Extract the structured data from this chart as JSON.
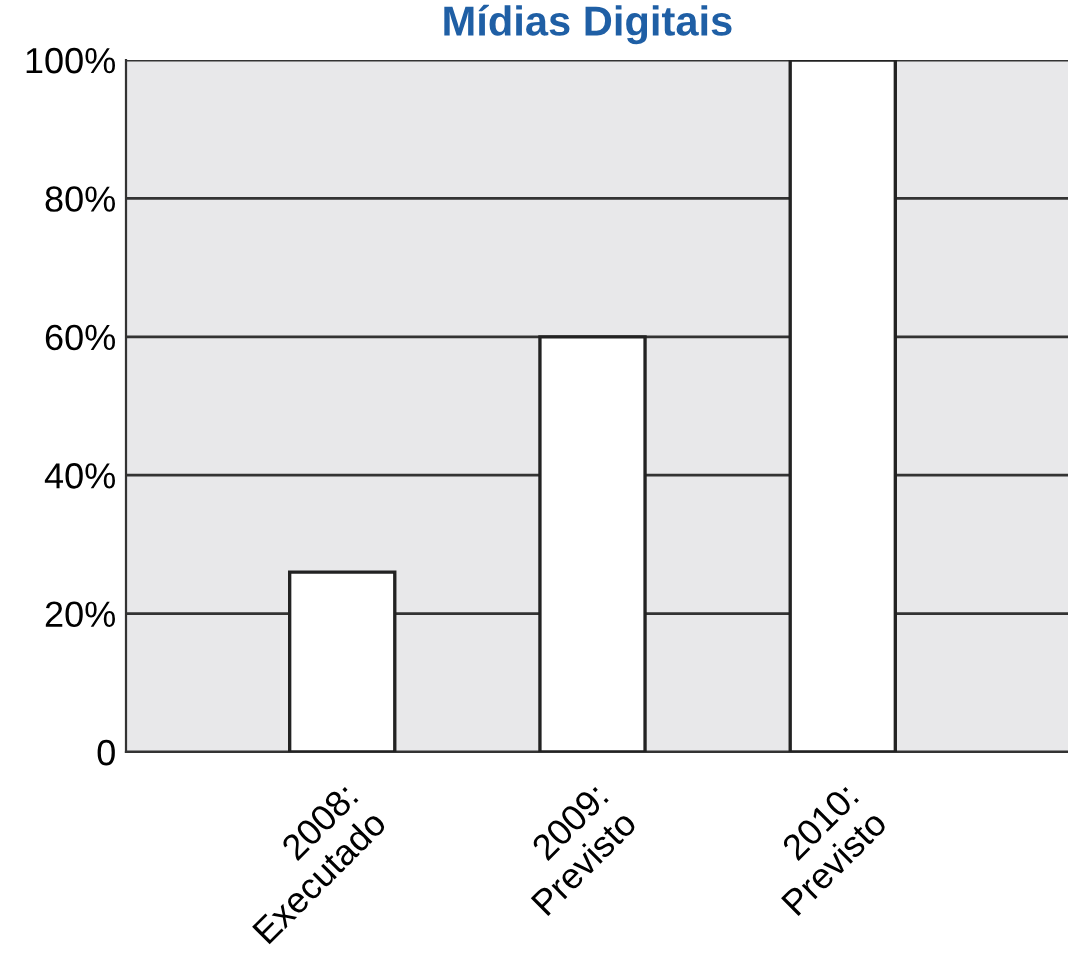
{
  "chart_data": {
    "type": "bar",
    "title": "Mídias Digitais",
    "categories": [
      "2008:\nExecutado",
      "2009:\nPrevisto",
      "2010:\nPrevisto"
    ],
    "values": [
      26,
      60,
      100
    ],
    "color": "#ffffff",
    "ylim": [
      0,
      100
    ],
    "yticks": [
      {
        "value": 0,
        "label": "0"
      },
      {
        "value": 20,
        "label": "20%"
      },
      {
        "value": 40,
        "label": "40%"
      },
      {
        "value": 60,
        "label": "60%"
      },
      {
        "value": 80,
        "label": "80%"
      },
      {
        "value": 100,
        "label": "100%"
      }
    ],
    "grid": "y"
  }
}
